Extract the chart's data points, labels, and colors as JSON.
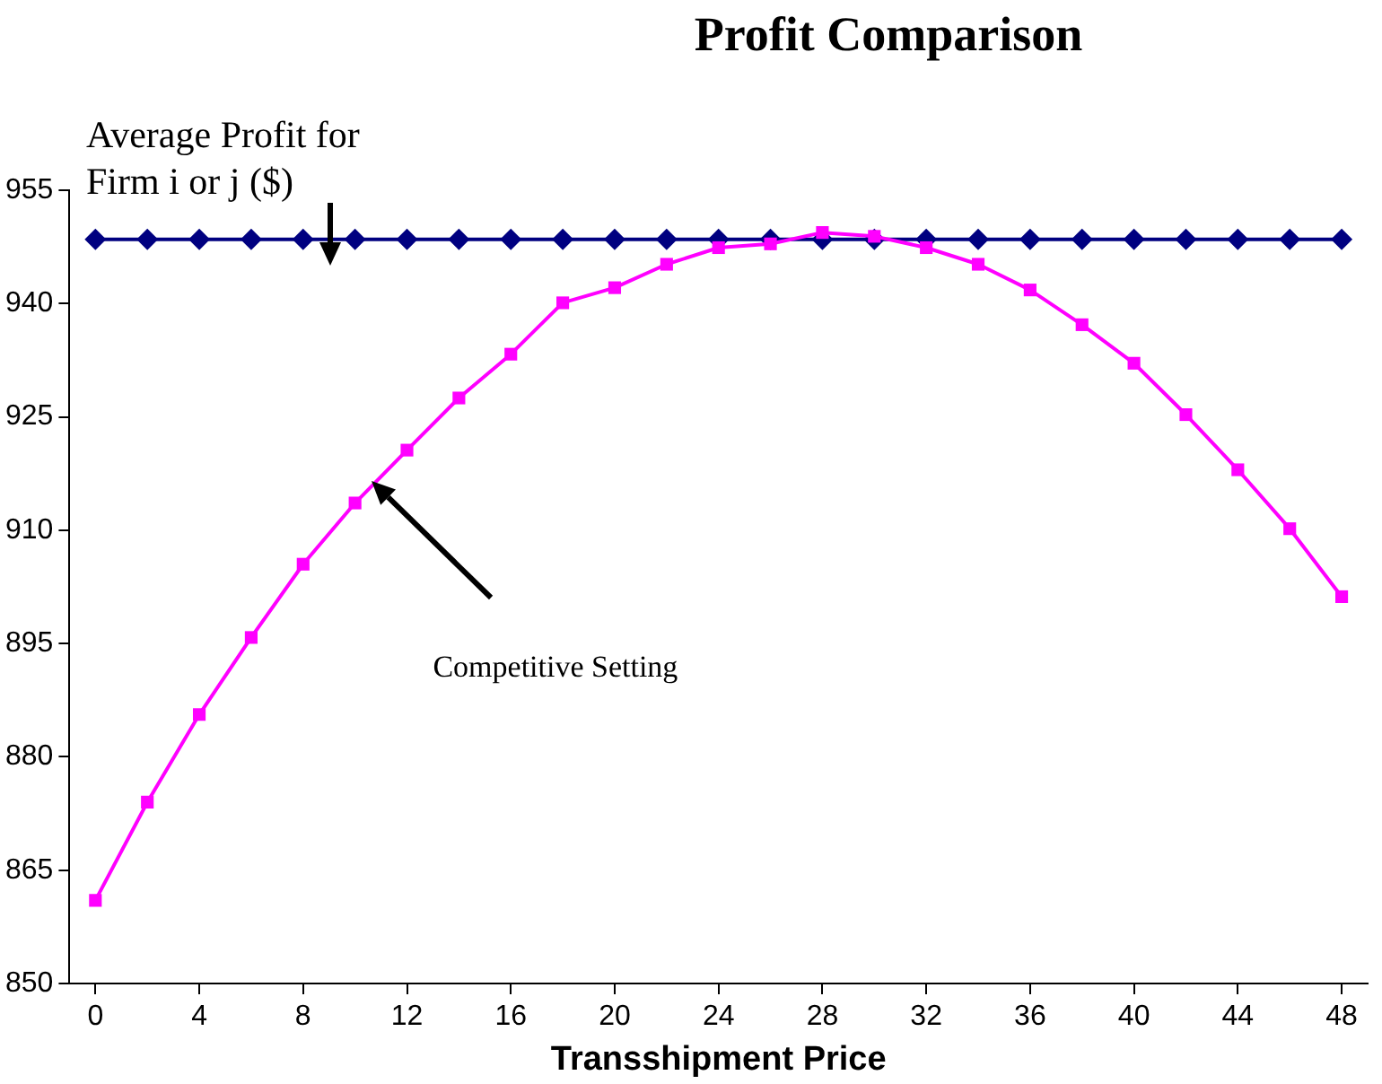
{
  "chart_data": {
    "type": "line",
    "title": "Profit Comparison",
    "xlabel": "Transshipment Price",
    "ylabel": "Average Profit for Firm i or j ($)",
    "x": [
      0,
      2,
      4,
      6,
      8,
      10,
      12,
      14,
      16,
      18,
      20,
      22,
      24,
      26,
      28,
      30,
      32,
      34,
      36,
      38,
      40,
      42,
      44,
      46,
      48
    ],
    "xlim": [
      -1,
      49
    ],
    "xticks": [
      0,
      4,
      8,
      12,
      16,
      20,
      24,
      28,
      32,
      36,
      40,
      44,
      48
    ],
    "series": [
      {
        "color": "#000080",
        "marker": "diamond",
        "values": [
          948.5,
          948.5,
          948.5,
          948.5,
          948.5,
          948.5,
          948.5,
          948.5,
          948.5,
          948.5,
          948.5,
          948.5,
          948.5,
          948.5,
          948.5,
          948.5,
          948.5,
          948.5,
          948.5,
          948.5,
          948.5,
          948.5,
          948.5,
          948.5,
          948.5
        ]
      },
      {
        "color": "#ff00ff",
        "marker": "square",
        "values": [
          861,
          874,
          885.6,
          895.8,
          905.5,
          913.6,
          920.6,
          927.5,
          933.3,
          940.1,
          942.1,
          945.2,
          947.4,
          947.9,
          949.4,
          948.9,
          947.4,
          945.2,
          941.8,
          937.2,
          932.1,
          925.3,
          918,
          910.2,
          901.2
        ]
      }
    ],
    "ylim": [
      850,
      955
    ],
    "yticks": [
      850,
      865,
      880,
      895,
      910,
      925,
      940,
      955
    ],
    "grid": false,
    "legend": false,
    "annotations": [
      "Competitive Setting"
    ]
  }
}
